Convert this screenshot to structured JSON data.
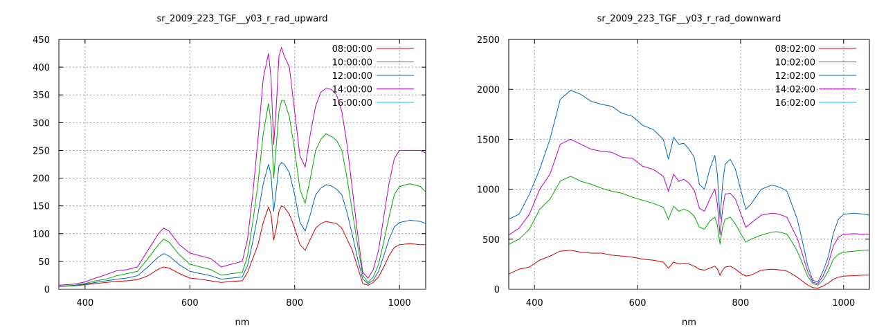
{
  "chart_data": [
    {
      "type": "line",
      "title": "sr_2009_223_TGF__y03_r_rad_upward",
      "xlabel": "nm",
      "ylabel": "",
      "xlim": [
        350,
        1050
      ],
      "ylim": [
        0,
        450
      ],
      "xticks": [
        400,
        600,
        800,
        1000
      ],
      "yticks": [
        0,
        50,
        100,
        150,
        200,
        250,
        300,
        350,
        400,
        450
      ],
      "grid": true,
      "legend_position": "top-right",
      "series": [
        {
          "name": "08:00:00",
          "color": "#cc0000",
          "x": [
            350,
            380,
            400,
            420,
            440,
            460,
            480,
            500,
            520,
            540,
            550,
            560,
            580,
            600,
            620,
            640,
            660,
            680,
            700,
            710,
            720,
            730,
            740,
            750,
            755,
            760,
            765,
            770,
            775,
            780,
            790,
            800,
            810,
            820,
            830,
            840,
            850,
            860,
            870,
            880,
            890,
            900,
            910,
            920,
            930,
            940,
            950,
            960,
            970,
            980,
            990,
            1000,
            1020,
            1040,
            1050
          ],
          "y": [
            5,
            6,
            8,
            10,
            12,
            14,
            15,
            17,
            24,
            36,
            40,
            38,
            28,
            20,
            18,
            15,
            12,
            14,
            15,
            30,
            55,
            80,
            120,
            148,
            135,
            88,
            110,
            140,
            150,
            148,
            135,
            110,
            80,
            70,
            90,
            110,
            118,
            122,
            120,
            118,
            110,
            90,
            70,
            40,
            10,
            7,
            12,
            22,
            40,
            60,
            75,
            80,
            82,
            80,
            80
          ]
        },
        {
          "name": "10:00:00",
          "color": "#00aa00",
          "x": [
            350,
            380,
            400,
            420,
            440,
            460,
            480,
            500,
            520,
            540,
            550,
            560,
            580,
            600,
            620,
            640,
            660,
            680,
            700,
            710,
            720,
            730,
            740,
            750,
            755,
            760,
            765,
            770,
            775,
            780,
            790,
            800,
            810,
            820,
            830,
            840,
            850,
            860,
            870,
            880,
            890,
            900,
            910,
            920,
            930,
            940,
            950,
            960,
            970,
            980,
            990,
            1000,
            1020,
            1040,
            1050
          ],
          "y": [
            5,
            7,
            10,
            15,
            18,
            24,
            28,
            32,
            55,
            80,
            90,
            85,
            62,
            45,
            40,
            35,
            25,
            28,
            30,
            60,
            120,
            190,
            280,
            335,
            300,
            200,
            260,
            320,
            340,
            340,
            310,
            250,
            180,
            155,
            200,
            250,
            270,
            280,
            275,
            268,
            250,
            200,
            140,
            80,
            25,
            12,
            22,
            45,
            85,
            130,
            170,
            185,
            190,
            185,
            175
          ]
        },
        {
          "name": "12:00:00",
          "color": "#0066bb",
          "x": [
            350,
            380,
            400,
            420,
            440,
            460,
            480,
            500,
            520,
            540,
            550,
            560,
            580,
            600,
            620,
            640,
            660,
            680,
            700,
            710,
            720,
            730,
            740,
            750,
            755,
            760,
            765,
            770,
            775,
            780,
            790,
            800,
            810,
            820,
            830,
            840,
            850,
            860,
            870,
            880,
            890,
            900,
            910,
            920,
            930,
            940,
            950,
            960,
            970,
            980,
            990,
            1000,
            1020,
            1040,
            1050
          ],
          "y": [
            5,
            6,
            9,
            12,
            15,
            18,
            20,
            24,
            40,
            58,
            64,
            60,
            44,
            32,
            28,
            24,
            18,
            20,
            22,
            42,
            85,
            135,
            190,
            225,
            205,
            140,
            180,
            222,
            228,
            225,
            210,
            170,
            120,
            105,
            135,
            170,
            182,
            188,
            186,
            180,
            170,
            138,
            98,
            55,
            18,
            10,
            16,
            32,
            60,
            90,
            112,
            120,
            124,
            122,
            118
          ]
        },
        {
          "name": "14:00:00",
          "color": "#bb00bb",
          "x": [
            350,
            380,
            400,
            420,
            440,
            460,
            480,
            500,
            520,
            540,
            550,
            560,
            580,
            600,
            620,
            640,
            660,
            680,
            700,
            710,
            720,
            730,
            740,
            750,
            755,
            760,
            765,
            770,
            775,
            780,
            790,
            800,
            810,
            820,
            830,
            840,
            850,
            860,
            870,
            880,
            890,
            900,
            910,
            920,
            930,
            940,
            950,
            960,
            970,
            980,
            990,
            1000,
            1020,
            1040,
            1050
          ],
          "y": [
            7,
            9,
            13,
            20,
            26,
            33,
            35,
            40,
            70,
            100,
            110,
            105,
            80,
            65,
            60,
            55,
            40,
            45,
            50,
            90,
            170,
            270,
            380,
            425,
            380,
            260,
            330,
            420,
            435,
            420,
            400,
            320,
            240,
            220,
            280,
            330,
            355,
            362,
            360,
            350,
            320,
            260,
            180,
            100,
            30,
            20,
            35,
            70,
            130,
            190,
            235,
            250,
            250,
            250,
            245
          ]
        },
        {
          "name": "16:00:00",
          "color": "#00c8ee",
          "x": [
            350,
            1050
          ],
          "y": [
            0,
            0
          ]
        }
      ]
    },
    {
      "type": "line",
      "title": "sr_2009_223_TGF__y03_r_rad_downward",
      "xlabel": "nm",
      "ylabel": "",
      "xlim": [
        350,
        1050
      ],
      "ylim": [
        0,
        2500
      ],
      "xticks": [
        400,
        600,
        800,
        1000
      ],
      "yticks": [
        0,
        500,
        1000,
        1500,
        2000,
        2500
      ],
      "grid": true,
      "legend_position": "top-right",
      "series": [
        {
          "name": "08:02:00",
          "color": "#cc0000",
          "x": [
            350,
            370,
            390,
            410,
            430,
            450,
            470,
            490,
            510,
            530,
            550,
            570,
            590,
            610,
            630,
            650,
            660,
            670,
            680,
            690,
            700,
            710,
            720,
            730,
            740,
            750,
            755,
            760,
            765,
            770,
            780,
            790,
            800,
            810,
            820,
            840,
            860,
            870,
            880,
            890,
            900,
            910,
            920,
            930,
            940,
            950,
            960,
            970,
            980,
            990,
            1000,
            1020,
            1040,
            1050
          ],
          "y": [
            150,
            200,
            220,
            290,
            330,
            380,
            390,
            370,
            360,
            360,
            340,
            330,
            320,
            300,
            290,
            270,
            210,
            270,
            250,
            260,
            250,
            230,
            200,
            190,
            210,
            230,
            200,
            140,
            190,
            220,
            230,
            200,
            160,
            130,
            140,
            190,
            200,
            195,
            190,
            180,
            150,
            120,
            80,
            40,
            15,
            10,
            30,
            60,
            100,
            120,
            130,
            135,
            140,
            140
          ]
        },
        {
          "name": "10:02:00",
          "color": "#00aa00",
          "x": [
            350,
            370,
            390,
            410,
            430,
            450,
            470,
            490,
            510,
            530,
            550,
            570,
            590,
            610,
            630,
            650,
            660,
            670,
            680,
            690,
            700,
            710,
            720,
            730,
            740,
            750,
            755,
            760,
            765,
            770,
            780,
            790,
            800,
            810,
            820,
            840,
            860,
            870,
            880,
            890,
            900,
            910,
            920,
            930,
            940,
            950,
            960,
            970,
            980,
            990,
            1000,
            1020,
            1040,
            1050
          ],
          "y": [
            450,
            500,
            600,
            800,
            900,
            1080,
            1130,
            1080,
            1050,
            1010,
            980,
            960,
            920,
            890,
            860,
            820,
            700,
            830,
            780,
            800,
            780,
            730,
            620,
            600,
            680,
            720,
            640,
            450,
            620,
            700,
            720,
            650,
            560,
            470,
            500,
            540,
            570,
            575,
            565,
            550,
            470,
            380,
            260,
            130,
            55,
            40,
            90,
            180,
            300,
            350,
            370,
            380,
            390,
            390
          ]
        },
        {
          "name": "12:02:00",
          "color": "#0066bb",
          "x": [
            350,
            370,
            390,
            410,
            430,
            450,
            470,
            490,
            510,
            530,
            550,
            570,
            590,
            610,
            630,
            650,
            660,
            670,
            680,
            690,
            700,
            710,
            720,
            730,
            740,
            750,
            755,
            760,
            765,
            770,
            780,
            790,
            800,
            810,
            820,
            840,
            860,
            870,
            880,
            890,
            900,
            910,
            920,
            930,
            940,
            950,
            960,
            970,
            980,
            990,
            1000,
            1020,
            1040,
            1050
          ],
          "y": [
            700,
            750,
            950,
            1200,
            1500,
            1900,
            1990,
            1950,
            1880,
            1850,
            1830,
            1760,
            1730,
            1640,
            1600,
            1500,
            1300,
            1520,
            1450,
            1460,
            1400,
            1320,
            1050,
            1000,
            1200,
            1340,
            1150,
            700,
            1050,
            1250,
            1300,
            1200,
            1000,
            800,
            850,
            1000,
            1040,
            1030,
            1010,
            980,
            840,
            700,
            480,
            240,
            90,
            70,
            180,
            320,
            560,
            700,
            750,
            760,
            750,
            740
          ]
        },
        {
          "name": "14:02:00",
          "color": "#bb00bb",
          "x": [
            350,
            370,
            390,
            410,
            430,
            450,
            470,
            490,
            510,
            530,
            550,
            570,
            590,
            610,
            630,
            650,
            660,
            670,
            680,
            690,
            700,
            710,
            720,
            730,
            740,
            750,
            755,
            760,
            765,
            770,
            780,
            790,
            800,
            810,
            820,
            840,
            860,
            870,
            880,
            890,
            900,
            910,
            920,
            930,
            940,
            950,
            960,
            970,
            980,
            990,
            1000,
            1020,
            1040,
            1050
          ],
          "y": [
            540,
            610,
            750,
            1000,
            1150,
            1450,
            1500,
            1450,
            1400,
            1380,
            1370,
            1320,
            1310,
            1230,
            1200,
            1130,
            980,
            1150,
            1080,
            1100,
            1060,
            990,
            810,
            780,
            900,
            1000,
            850,
            540,
            800,
            950,
            960,
            900,
            760,
            620,
            660,
            740,
            760,
            755,
            740,
            720,
            610,
            510,
            350,
            180,
            70,
            55,
            130,
            250,
            430,
            520,
            550,
            555,
            550,
            545
          ]
        },
        {
          "name": "16:02:00",
          "color": "#00c8ee",
          "x": [
            350,
            1050
          ],
          "y": [
            0,
            0
          ]
        }
      ]
    }
  ]
}
